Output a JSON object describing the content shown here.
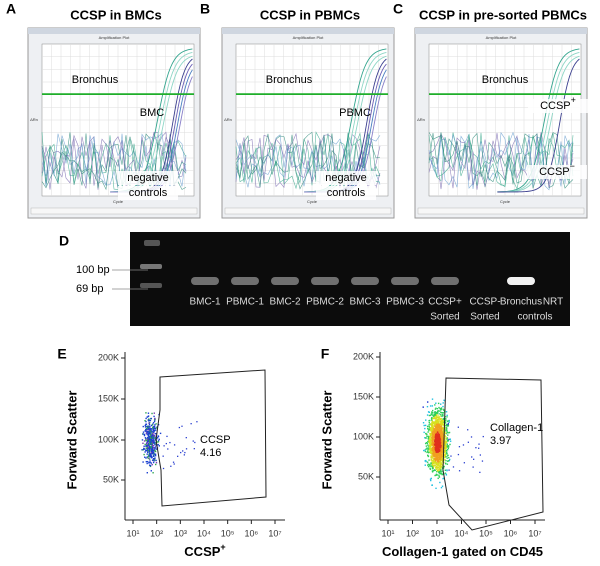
{
  "panels": [
    {
      "label": "A",
      "title": "CCSP in BMCs",
      "plot_title": "Amplification Plot",
      "x_axis": "Cycle",
      "y_axis": "ΔRn",
      "annotations": [
        {
          "text": "Bronchus"
        },
        {
          "text": "BMC"
        },
        {
          "text": "negative"
        },
        {
          "text": "controls"
        }
      ]
    },
    {
      "label": "B",
      "title": "CCSP in PBMCs",
      "plot_title": "Amplification Plot",
      "x_axis": "Cycle",
      "y_axis": "ΔRn",
      "annotations": [
        {
          "text": "Bronchus"
        },
        {
          "text": "PBMC"
        },
        {
          "text": "negative"
        },
        {
          "text": "controls"
        }
      ]
    },
    {
      "label": "C",
      "title": "CCSP in pre-sorted PBMCs",
      "plot_title": "Amplification Plot",
      "x_axis": "Cycle",
      "y_axis": "ΔRn",
      "annotations": [
        {
          "text": "Bronchus"
        },
        {
          "text": "CCSP",
          "sup": "+"
        },
        {
          "text": "CCSP",
          "sup": "−"
        }
      ]
    }
  ],
  "gel": {
    "label": "D",
    "markers": [
      "100 bp",
      "69 bp"
    ],
    "lanes": [
      [
        "BMC-1"
      ],
      [
        "PBMC-1"
      ],
      [
        "BMC-2"
      ],
      [
        "PBMC-2"
      ],
      [
        "BMC-3"
      ],
      [
        "PBMC-3"
      ],
      [
        "CCSP+",
        "Sorted"
      ],
      [
        "CCSP-",
        "Sorted"
      ],
      [
        "Bronchus"
      ],
      [
        "NRT",
        "controls"
      ]
    ]
  },
  "flow": [
    {
      "label": "E",
      "y_axis": "Forward Scatter",
      "x_axis": {
        "text": "CCSP",
        "sup": "+"
      },
      "yticks": [
        "200K",
        "150K",
        "100K",
        "50K"
      ],
      "xticks": [
        "10¹",
        "10²",
        "10³",
        "10⁴",
        "10⁵",
        "10⁶",
        "10⁷"
      ],
      "gate": [
        "CCSP",
        "4.16"
      ]
    },
    {
      "label": "F",
      "y_axis": "Forward Scatter",
      "x_axis": {
        "text": "Collagen-1  gated on CD45"
      },
      "yticks": [
        "200K",
        "150K",
        "100K",
        "50K"
      ],
      "xticks": [
        "10¹",
        "10²",
        "10³",
        "10⁴",
        "10⁵",
        "10⁶",
        "10⁷"
      ],
      "gate": [
        "Collagen-1",
        "3.97"
      ]
    }
  ]
}
